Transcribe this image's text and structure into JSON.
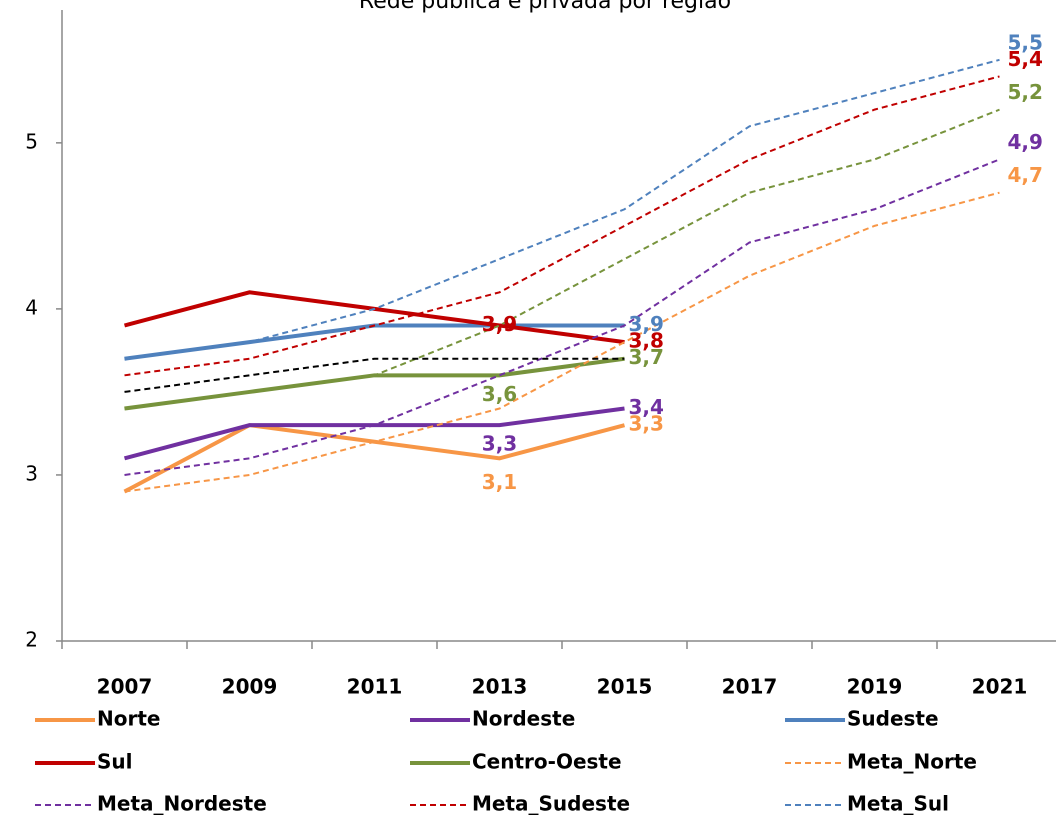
{
  "chart_data": {
    "type": "line",
    "title": "Rede pública e privada por região",
    "categories": [
      "2007",
      "2009",
      "2011",
      "2013",
      "2015",
      "2017",
      "2019",
      "2021"
    ],
    "ylim": [
      2,
      5.8
    ],
    "yticks": [
      2,
      3,
      4,
      5
    ],
    "series": [
      {
        "name": "Norte",
        "color": "#f79646",
        "dashed": false,
        "values": [
          2.9,
          3.3,
          3.2,
          3.1,
          3.3,
          null,
          null,
          null
        ],
        "value_labels": [
          null,
          null,
          null,
          "3,1",
          "3,3",
          null,
          null,
          null
        ]
      },
      {
        "name": "Nordeste",
        "color": "#7030a0",
        "dashed": false,
        "values": [
          3.1,
          3.3,
          3.3,
          3.3,
          3.4,
          null,
          null,
          null
        ],
        "value_labels": [
          null,
          null,
          null,
          "3,3",
          "3,4",
          null,
          null,
          null
        ]
      },
      {
        "name": "Sudeste",
        "color": "#4f81bd",
        "dashed": false,
        "values": [
          3.7,
          3.8,
          3.9,
          3.9,
          3.9,
          null,
          null,
          null
        ],
        "value_labels": [
          null,
          null,
          null,
          null,
          "3,9",
          null,
          null,
          null
        ]
      },
      {
        "name": "Sul",
        "color": "#c00000",
        "dashed": false,
        "values": [
          3.9,
          4.1,
          4.0,
          3.9,
          3.8,
          null,
          null,
          null
        ],
        "value_labels": [
          null,
          null,
          null,
          "3,9",
          "3,8",
          null,
          null,
          null
        ]
      },
      {
        "name": "Centro-Oeste",
        "color": "#77933c",
        "dashed": false,
        "values": [
          3.4,
          3.5,
          3.6,
          3.6,
          3.7,
          null,
          null,
          null
        ],
        "value_labels": [
          null,
          null,
          null,
          "3,6",
          "3,7",
          null,
          null,
          null
        ]
      },
      {
        "name": "Meta_Norte",
        "color": "#f79646",
        "dashed": true,
        "values": [
          2.9,
          3.0,
          3.2,
          3.4,
          3.8,
          4.2,
          4.5,
          4.7
        ],
        "value_labels": [
          null,
          null,
          null,
          null,
          null,
          null,
          null,
          "4,7"
        ]
      },
      {
        "name": "Meta_Nordeste",
        "color": "#7030a0",
        "dashed": true,
        "values": [
          3.0,
          3.1,
          3.3,
          3.6,
          3.9,
          4.4,
          4.6,
          4.9
        ],
        "value_labels": [
          null,
          null,
          null,
          null,
          null,
          null,
          null,
          "4,9"
        ]
      },
      {
        "name": "Meta_Sudeste",
        "color": "#c00000",
        "dashed": true,
        "values": [
          3.6,
          3.7,
          3.9,
          4.1,
          4.5,
          4.9,
          5.2,
          5.4
        ],
        "value_labels": [
          null,
          null,
          null,
          null,
          null,
          null,
          null,
          "5,4"
        ]
      },
      {
        "name": "Meta_Sul",
        "color": "#4f81bd",
        "dashed": true,
        "values": [
          3.7,
          3.8,
          4.0,
          4.3,
          4.6,
          5.1,
          5.3,
          5.5
        ],
        "value_labels": [
          null,
          null,
          null,
          null,
          null,
          null,
          null,
          "5,5"
        ]
      },
      {
        "color": "#77933c",
        "dashed": true,
        "values": [
          3.4,
          3.5,
          3.6,
          3.9,
          4.3,
          4.7,
          4.9,
          5.2
        ],
        "value_labels": [
          null,
          null,
          null,
          null,
          null,
          null,
          null,
          "5,2"
        ]
      },
      {
        "color": "#000000",
        "dashed": true,
        "values": [
          3.5,
          3.6,
          3.7,
          3.7,
          3.7,
          null,
          null,
          null
        ]
      }
    ]
  }
}
